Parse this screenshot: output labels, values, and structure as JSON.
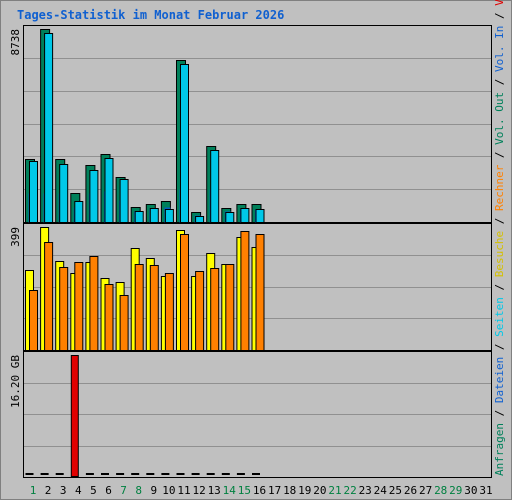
{
  "title": "Tages-Statistik im Monat Februar 2026",
  "colors": {
    "background": "#c0c0c0",
    "plot": "#c0c0c0",
    "grid": "#909090",
    "title": "#1060d0",
    "anfragen": "#00805a",
    "dateien": "#00c8e8",
    "besuche": "#ffff00",
    "rechner": "#ff8000",
    "volumen": "#e00000",
    "weekday": "#000000",
    "weekend": "#008040"
  },
  "chart_data": [
    {
      "type": "bar",
      "panel": "top",
      "ytick": "8738",
      "ymax": 8738,
      "categories": [
        "1",
        "2",
        "3",
        "4",
        "5",
        "6",
        "7",
        "8",
        "9",
        "10",
        "11",
        "12",
        "13",
        "14",
        "15",
        "16",
        "17",
        "18",
        "19",
        "20",
        "21",
        "22",
        "23",
        "24",
        "25",
        "26",
        "27",
        "28",
        "29",
        "30",
        "31"
      ],
      "series": [
        {
          "name": "Anfragen",
          "values": [
            2860,
            8738,
            2860,
            1330,
            2570,
            3100,
            2050,
            700,
            800,
            930,
            7320,
            440,
            3420,
            620,
            800,
            800,
            null,
            null,
            null,
            null,
            null,
            null,
            null,
            null,
            null,
            null,
            null,
            null,
            null,
            null,
            null
          ]
        },
        {
          "name": "Seiten",
          "values": [
            1300,
            1300,
            1300,
            700,
            1300,
            1400,
            1000,
            500,
            600,
            700,
            1500,
            300,
            1500,
            500,
            600,
            600,
            null,
            null,
            null,
            null,
            null,
            null,
            null,
            null,
            null,
            null,
            null,
            null,
            null,
            null,
            null
          ]
        },
        {
          "name": "Dateien",
          "values": [
            2860,
            8650,
            2720,
            1060,
            2440,
            3000,
            2050,
            580,
            710,
            670,
            7230,
            350,
            3330,
            530,
            710,
            670,
            null,
            null,
            null,
            null,
            null,
            null,
            null,
            null,
            null,
            null,
            null,
            null,
            null,
            null,
            null
          ]
        }
      ]
    },
    {
      "type": "bar",
      "panel": "middle",
      "ytick": "399",
      "ymax": 399,
      "categories": [
        "1",
        "2",
        "3",
        "4",
        "5",
        "6",
        "7",
        "8",
        "9",
        "10",
        "11",
        "12",
        "13",
        "14",
        "15",
        "16",
        "17",
        "18",
        "19",
        "20",
        "21",
        "22",
        "23",
        "24",
        "25",
        "26",
        "27",
        "28",
        "29",
        "30",
        "31"
      ],
      "series": [
        {
          "name": "Besuche",
          "values": [
            260,
            399,
            290,
            250,
            285,
            235,
            220,
            330,
            300,
            240,
            390,
            240,
            315,
            280,
            365,
            335,
            null,
            null,
            null,
            null,
            null,
            null,
            null,
            null,
            null,
            null,
            null,
            null,
            null,
            null,
            null
          ]
        },
        {
          "name": "Rechner",
          "values": [
            195,
            350,
            270,
            285,
            305,
            215,
            180,
            280,
            275,
            250,
            375,
            255,
            265,
            280,
            385,
            375,
            null,
            null,
            null,
            null,
            null,
            null,
            null,
            null,
            null,
            null,
            null,
            null,
            null,
            null,
            null
          ]
        }
      ]
    },
    {
      "type": "bar",
      "panel": "bottom",
      "ytick": "16.20 GB",
      "ymax": 16.2,
      "categories": [
        "1",
        "2",
        "3",
        "4",
        "5",
        "6",
        "7",
        "8",
        "9",
        "10",
        "11",
        "12",
        "13",
        "14",
        "15",
        "16",
        "17",
        "18",
        "19",
        "20",
        "21",
        "22",
        "23",
        "24",
        "25",
        "26",
        "27",
        "28",
        "29",
        "30",
        "31"
      ],
      "series": [
        {
          "name": "Volumen",
          "values": [
            0.05,
            0.05,
            0.05,
            16.2,
            0.05,
            0.05,
            0.05,
            0.05,
            0.05,
            0.05,
            0.05,
            0.05,
            0.05,
            0.05,
            0.05,
            0.05,
            null,
            null,
            null,
            null,
            null,
            null,
            null,
            null,
            null,
            null,
            null,
            null,
            null,
            null,
            null
          ]
        }
      ]
    }
  ],
  "weekend_days": [
    1,
    7,
    8,
    14,
    15,
    21,
    22,
    28,
    29
  ],
  "right_legend_lines": [
    [
      {
        "text": "Anfragen",
        "color": "#00805a"
      },
      {
        "text": " / ",
        "color": "#000000"
      },
      {
        "text": "Dateien",
        "color": "#1060d0"
      },
      {
        "text": " / ",
        "color": "#000000"
      },
      {
        "text": "Seiten",
        "color": "#00c8e8"
      },
      {
        "text": " / ",
        "color": "#000000"
      },
      {
        "text": "Besuche",
        "color": "#d4c000"
      },
      {
        "text": " / ",
        "color": "#000000"
      },
      {
        "text": "Rechner",
        "color": "#ff8000"
      },
      {
        "text": " / ",
        "color": "#000000"
      },
      {
        "text": "Vol. Out",
        "color": "#00805a"
      },
      {
        "text": " / ",
        "color": "#000000"
      },
      {
        "text": "Vol. In",
        "color": "#1060d0"
      },
      {
        "text": " / ",
        "color": "#000000"
      },
      {
        "text": "Volumen",
        "color": "#e00000"
      }
    ]
  ]
}
